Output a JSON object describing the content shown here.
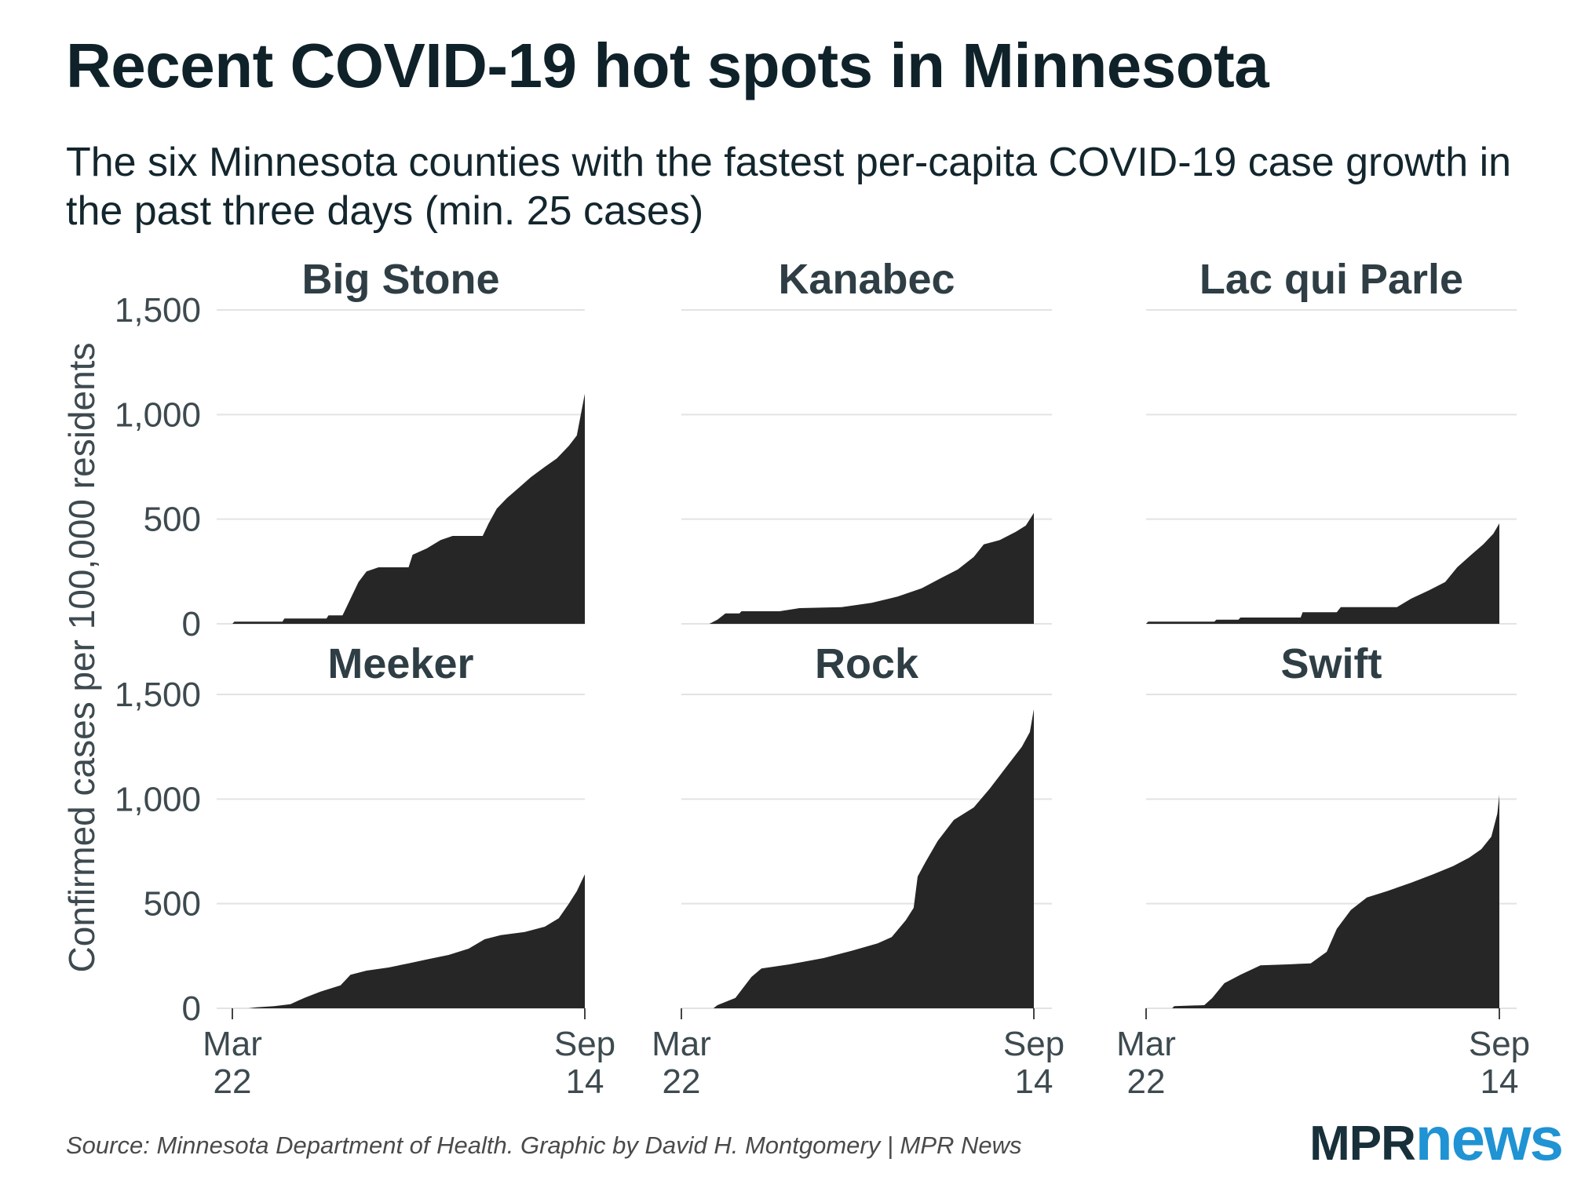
{
  "title": "Recent COVID-19 hot spots in Minnesota",
  "subtitle": "The six Minnesota counties with the fastest per-capita COVID-19 case growth in the past three days (min. 25 cases)",
  "source": "Source: Minnesota Department of Health. Graphic by David H. Montgomery | MPR News",
  "logo": {
    "part1": "MPR",
    "part2": "news",
    "colors": {
      "mpr": "#17303a",
      "news": "#1f93d3"
    }
  },
  "colors": {
    "area": "#262626",
    "grid": "#e3e3e3",
    "text": "#13262d"
  },
  "chart_data": {
    "type": "area",
    "layout": "small-multiples",
    "ylabel": "Confirmed cases per 100,000 residents",
    "ylim": [
      0,
      1500
    ],
    "yticks": [
      0,
      500,
      1000,
      1500
    ],
    "ytick_labels": [
      "0",
      "500",
      "1,000",
      "1,500"
    ],
    "xlim": [
      "2020-03-22",
      "2020-09-14"
    ],
    "xticks": [
      "2020-03-22",
      "2020-09-14"
    ],
    "xtick_labels": [
      [
        "Mar",
        "22"
      ],
      [
        "Sep",
        "14"
      ]
    ],
    "grid": true,
    "panels": [
      {
        "name": "Big Stone",
        "points": [
          [
            "2020-03-22",
            0
          ],
          [
            "2020-03-23",
            10
          ],
          [
            "2020-04-16",
            10
          ],
          [
            "2020-04-17",
            25
          ],
          [
            "2020-05-08",
            25
          ],
          [
            "2020-05-09",
            40
          ],
          [
            "2020-05-16",
            40
          ],
          [
            "2020-05-17",
            60
          ],
          [
            "2020-05-20",
            120
          ],
          [
            "2020-05-24",
            200
          ],
          [
            "2020-05-28",
            250
          ],
          [
            "2020-06-03",
            270
          ],
          [
            "2020-06-18",
            270
          ],
          [
            "2020-06-20",
            330
          ],
          [
            "2020-06-27",
            360
          ],
          [
            "2020-07-04",
            400
          ],
          [
            "2020-07-10",
            420
          ],
          [
            "2020-07-25",
            420
          ],
          [
            "2020-07-28",
            480
          ],
          [
            "2020-08-01",
            550
          ],
          [
            "2020-08-06",
            600
          ],
          [
            "2020-08-12",
            650
          ],
          [
            "2020-08-18",
            700
          ],
          [
            "2020-08-25",
            750
          ],
          [
            "2020-08-31",
            790
          ],
          [
            "2020-09-06",
            850
          ],
          [
            "2020-09-10",
            900
          ],
          [
            "2020-09-14",
            1100
          ]
        ]
      },
      {
        "name": "Kanabec",
        "points": [
          [
            "2020-03-22",
            0
          ],
          [
            "2020-04-05",
            0
          ],
          [
            "2020-04-09",
            20
          ],
          [
            "2020-04-13",
            50
          ],
          [
            "2020-04-20",
            50
          ],
          [
            "2020-04-21",
            60
          ],
          [
            "2020-05-10",
            60
          ],
          [
            "2020-05-20",
            75
          ],
          [
            "2020-06-10",
            80
          ],
          [
            "2020-06-25",
            100
          ],
          [
            "2020-07-08",
            130
          ],
          [
            "2020-07-20",
            170
          ],
          [
            "2020-07-30",
            220
          ],
          [
            "2020-08-07",
            260
          ],
          [
            "2020-08-15",
            320
          ],
          [
            "2020-08-20",
            380
          ],
          [
            "2020-08-28",
            400
          ],
          [
            "2020-09-05",
            440
          ],
          [
            "2020-09-10",
            470
          ],
          [
            "2020-09-14",
            530
          ]
        ]
      },
      {
        "name": "Lac qui Parle",
        "points": [
          [
            "2020-03-22",
            0
          ],
          [
            "2020-03-23",
            10
          ],
          [
            "2020-04-25",
            10
          ],
          [
            "2020-04-26",
            20
          ],
          [
            "2020-05-07",
            20
          ],
          [
            "2020-05-08",
            30
          ],
          [
            "2020-06-07",
            30
          ],
          [
            "2020-06-08",
            55
          ],
          [
            "2020-06-25",
            55
          ],
          [
            "2020-06-27",
            80
          ],
          [
            "2020-07-25",
            80
          ],
          [
            "2020-08-01",
            120
          ],
          [
            "2020-08-10",
            160
          ],
          [
            "2020-08-18",
            200
          ],
          [
            "2020-08-24",
            270
          ],
          [
            "2020-08-31",
            330
          ],
          [
            "2020-09-06",
            380
          ],
          [
            "2020-09-11",
            430
          ],
          [
            "2020-09-14",
            480
          ]
        ]
      },
      {
        "name": "Meeker",
        "points": [
          [
            "2020-03-22",
            0
          ],
          [
            "2020-03-30",
            0
          ],
          [
            "2020-04-03",
            5
          ],
          [
            "2020-04-12",
            10
          ],
          [
            "2020-04-20",
            20
          ],
          [
            "2020-04-27",
            50
          ],
          [
            "2020-05-05",
            80
          ],
          [
            "2020-05-15",
            110
          ],
          [
            "2020-05-20",
            160
          ],
          [
            "2020-05-28",
            180
          ],
          [
            "2020-06-08",
            195
          ],
          [
            "2020-06-18",
            215
          ],
          [
            "2020-06-28",
            235
          ],
          [
            "2020-07-08",
            255
          ],
          [
            "2020-07-18",
            285
          ],
          [
            "2020-07-26",
            330
          ],
          [
            "2020-08-03",
            350
          ],
          [
            "2020-08-15",
            365
          ],
          [
            "2020-08-25",
            390
          ],
          [
            "2020-09-01",
            430
          ],
          [
            "2020-09-06",
            500
          ],
          [
            "2020-09-10",
            560
          ],
          [
            "2020-09-14",
            640
          ]
        ]
      },
      {
        "name": "Rock",
        "points": [
          [
            "2020-03-22",
            0
          ],
          [
            "2020-04-07",
            0
          ],
          [
            "2020-04-09",
            15
          ],
          [
            "2020-04-18",
            50
          ],
          [
            "2020-04-26",
            150
          ],
          [
            "2020-05-01",
            190
          ],
          [
            "2020-05-15",
            210
          ],
          [
            "2020-06-01",
            240
          ],
          [
            "2020-06-15",
            275
          ],
          [
            "2020-06-28",
            310
          ],
          [
            "2020-07-05",
            340
          ],
          [
            "2020-07-12",
            420
          ],
          [
            "2020-07-16",
            480
          ],
          [
            "2020-07-18",
            630
          ],
          [
            "2020-07-22",
            700
          ],
          [
            "2020-07-28",
            800
          ],
          [
            "2020-08-05",
            900
          ],
          [
            "2020-08-15",
            960
          ],
          [
            "2020-08-23",
            1050
          ],
          [
            "2020-08-31",
            1150
          ],
          [
            "2020-09-08",
            1250
          ],
          [
            "2020-09-12",
            1320
          ],
          [
            "2020-09-14",
            1430
          ]
        ]
      },
      {
        "name": "Swift",
        "points": [
          [
            "2020-03-22",
            0
          ],
          [
            "2020-04-04",
            0
          ],
          [
            "2020-04-05",
            10
          ],
          [
            "2020-04-20",
            15
          ],
          [
            "2020-04-24",
            50
          ],
          [
            "2020-04-30",
            120
          ],
          [
            "2020-05-08",
            160
          ],
          [
            "2020-05-18",
            205
          ],
          [
            "2020-06-01",
            210
          ],
          [
            "2020-06-12",
            215
          ],
          [
            "2020-06-20",
            270
          ],
          [
            "2020-06-25",
            380
          ],
          [
            "2020-07-02",
            470
          ],
          [
            "2020-07-10",
            530
          ],
          [
            "2020-07-20",
            560
          ],
          [
            "2020-08-01",
            600
          ],
          [
            "2020-08-12",
            640
          ],
          [
            "2020-08-22",
            680
          ],
          [
            "2020-08-30",
            720
          ],
          [
            "2020-09-05",
            760
          ],
          [
            "2020-09-10",
            820
          ],
          [
            "2020-09-13",
            930
          ],
          [
            "2020-09-14",
            1020
          ]
        ]
      }
    ]
  }
}
